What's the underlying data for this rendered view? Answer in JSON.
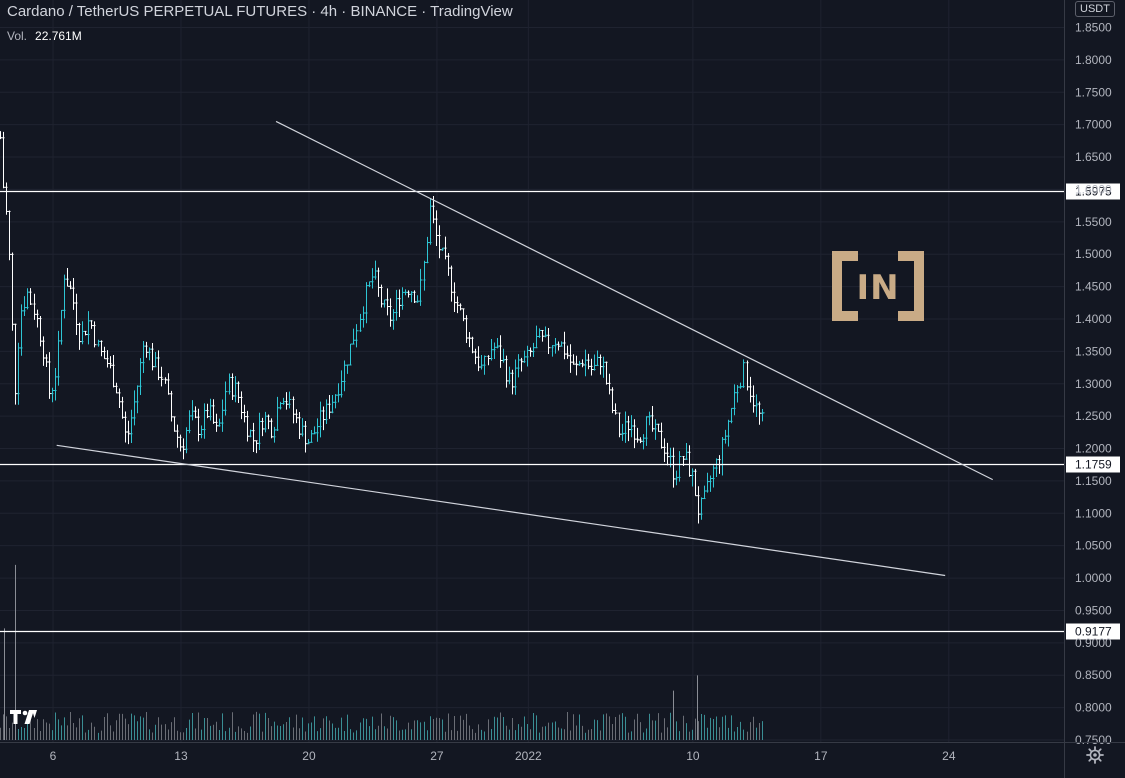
{
  "header": {
    "title": "Cardano / TetherUS PERPETUAL FUTURES · 4h · BINANCE · TradingView",
    "vol_label": "Vol.",
    "vol_value": "22.761M"
  },
  "currency": "USDT",
  "brand_logo_text": "IN",
  "chart_data": {
    "type": "candlestick",
    "y_ticks": [
      "1.8500",
      "1.8000",
      "1.7500",
      "1.7000",
      "1.6500",
      "1.6000",
      "1.5500",
      "1.5000",
      "1.4500",
      "1.4000",
      "1.3500",
      "1.3000",
      "1.2500",
      "1.2000",
      "1.1500",
      "1.1000",
      "1.0500",
      "1.0000",
      "0.9500",
      "0.9000",
      "0.8500",
      "0.8000",
      "0.7500"
    ],
    "x_ticks": [
      {
        "label": "6",
        "day": 6
      },
      {
        "label": "13",
        "day": 13
      },
      {
        "label": "20",
        "day": 20
      },
      {
        "label": "27",
        "day": 27
      },
      {
        "label": "2022",
        "day": 32
      },
      {
        "label": "10",
        "day": 41
      },
      {
        "label": "17",
        "day": 48
      },
      {
        "label": "24",
        "day": 55
      }
    ],
    "ylim": [
      0.75,
      1.85
    ],
    "xlim": [
      3.1,
      61.3
    ],
    "grid": true,
    "horizontal_levels": [
      {
        "value": 1.5975,
        "label": "1.5975"
      },
      {
        "value": 1.1759,
        "label": "1.1759"
      },
      {
        "value": 0.9177,
        "label": "0.9177"
      }
    ],
    "trendlines": [
      {
        "x1": 18.2,
        "y1": 1.705,
        "x2": 57.4,
        "y2": 1.152
      },
      {
        "x1": 6.2,
        "y1": 1.205,
        "x2": 54.8,
        "y2": 1.004
      }
    ],
    "price_path": [
      [
        3.1,
        1.68
      ],
      [
        3.3,
        1.59
      ],
      [
        3.5,
        1.55
      ],
      [
        3.7,
        1.44
      ],
      [
        3.9,
        1.28
      ],
      [
        4.2,
        1.41
      ],
      [
        4.6,
        1.44
      ],
      [
        5.0,
        1.41
      ],
      [
        5.4,
        1.36
      ],
      [
        5.8,
        1.28
      ],
      [
        6.2,
        1.33
      ],
      [
        6.6,
        1.47
      ],
      [
        7.0,
        1.44
      ],
      [
        7.5,
        1.37
      ],
      [
        8.0,
        1.4
      ],
      [
        8.5,
        1.35
      ],
      [
        9.0,
        1.33
      ],
      [
        9.5,
        1.29
      ],
      [
        10.0,
        1.21
      ],
      [
        10.5,
        1.28
      ],
      [
        11.0,
        1.37
      ],
      [
        11.5,
        1.33
      ],
      [
        12.0,
        1.31
      ],
      [
        12.5,
        1.24
      ],
      [
        13.0,
        1.2
      ],
      [
        13.5,
        1.25
      ],
      [
        14.0,
        1.23
      ],
      [
        14.5,
        1.26
      ],
      [
        15.0,
        1.22
      ],
      [
        15.5,
        1.3
      ],
      [
        16.0,
        1.29
      ],
      [
        16.5,
        1.24
      ],
      [
        17.0,
        1.21
      ],
      [
        17.5,
        1.25
      ],
      [
        18.0,
        1.23
      ],
      [
        18.5,
        1.29
      ],
      [
        19.0,
        1.26
      ],
      [
        19.5,
        1.23
      ],
      [
        20.0,
        1.21
      ],
      [
        20.5,
        1.24
      ],
      [
        21.0,
        1.26
      ],
      [
        21.5,
        1.29
      ],
      [
        22.0,
        1.33
      ],
      [
        22.5,
        1.38
      ],
      [
        23.0,
        1.43
      ],
      [
        23.5,
        1.47
      ],
      [
        24.0,
        1.42
      ],
      [
        24.5,
        1.4
      ],
      [
        25.0,
        1.44
      ],
      [
        25.5,
        1.45
      ],
      [
        26.0,
        1.43
      ],
      [
        26.3,
        1.49
      ],
      [
        26.6,
        1.57
      ],
      [
        26.9,
        1.53
      ],
      [
        27.2,
        1.5
      ],
      [
        27.6,
        1.47
      ],
      [
        28.0,
        1.43
      ],
      [
        28.5,
        1.39
      ],
      [
        29.0,
        1.35
      ],
      [
        29.5,
        1.32
      ],
      [
        30.0,
        1.36
      ],
      [
        30.5,
        1.34
      ],
      [
        31.0,
        1.3
      ],
      [
        31.5,
        1.33
      ],
      [
        32.0,
        1.34
      ],
      [
        32.5,
        1.37
      ],
      [
        33.0,
        1.36
      ],
      [
        33.5,
        1.37
      ],
      [
        34.0,
        1.35
      ],
      [
        34.5,
        1.32
      ],
      [
        35.0,
        1.34
      ],
      [
        35.5,
        1.32
      ],
      [
        36.0,
        1.34
      ],
      [
        36.5,
        1.27
      ],
      [
        37.0,
        1.22
      ],
      [
        37.5,
        1.24
      ],
      [
        38.0,
        1.22
      ],
      [
        38.5,
        1.24
      ],
      [
        39.0,
        1.22
      ],
      [
        39.5,
        1.2
      ],
      [
        40.0,
        1.16
      ],
      [
        40.5,
        1.19
      ],
      [
        41.0,
        1.15
      ],
      [
        41.3,
        1.1
      ],
      [
        41.6,
        1.12
      ],
      [
        42.0,
        1.16
      ],
      [
        42.5,
        1.19
      ],
      [
        43.0,
        1.25
      ],
      [
        43.4,
        1.3
      ],
      [
        43.8,
        1.32
      ],
      [
        44.2,
        1.28
      ],
      [
        44.6,
        1.25
      ],
      [
        44.8,
        1.24
      ]
    ],
    "volume": {
      "ylim": [
        0,
        16
      ],
      "spike": {
        "x": 3.9,
        "value": 14.9
      },
      "extra_spikes": [
        {
          "x": 3.3,
          "value": 9.5
        },
        {
          "x": 39.9,
          "value": 4.2
        },
        {
          "x": 41.2,
          "value": 5.5
        }
      ]
    }
  }
}
